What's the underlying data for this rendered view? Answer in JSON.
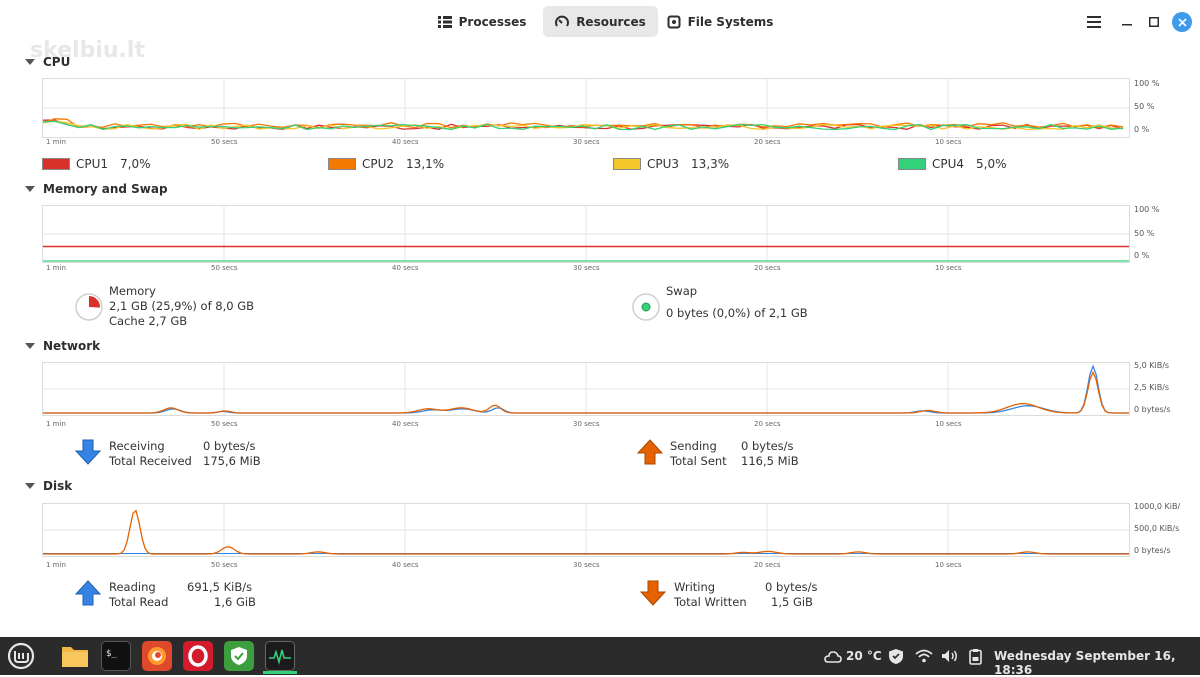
{
  "header": {
    "tabs": [
      {
        "label": "Processes",
        "icon": "list-icon",
        "active": false
      },
      {
        "label": "Resources",
        "icon": "gauge-icon",
        "active": true
      },
      {
        "label": "File Systems",
        "icon": "disk-icon",
        "active": false
      }
    ],
    "watermark": "skelbiu.lt"
  },
  "x_ticks": [
    "1 min",
    "50 secs",
    "40 secs",
    "30 secs",
    "20 secs",
    "10 secs"
  ],
  "cpu": {
    "title": "CPU",
    "y_ticks": [
      "100 %",
      "50 %",
      "0 %"
    ],
    "cores": [
      {
        "name": "CPU1",
        "value": "7,0%",
        "color": "#d9302b"
      },
      {
        "name": "CPU2",
        "value": "13,1%",
        "color": "#f57900"
      },
      {
        "name": "CPU3",
        "value": "13,3%",
        "color": "#f5c629"
      },
      {
        "name": "CPU4",
        "value": "5,0%",
        "color": "#33d17a"
      }
    ]
  },
  "memory": {
    "title": "Memory and Swap",
    "y_ticks": [
      "100 %",
      "50 %",
      "0 %"
    ],
    "memory_label": "Memory",
    "memory_value": "2,1 GB (25,9%) of 8,0 GB",
    "cache_value": "Cache 2,7 GB",
    "swap_label": "Swap",
    "swap_value": "0 bytes (0,0%) of 2,1 GB",
    "memory_color": "#d9302b",
    "swap_color": "#33d17a",
    "memory_fraction": 0.259,
    "swap_fraction": 0.0
  },
  "network": {
    "title": "Network",
    "y_ticks": [
      "5,0 KiB/s",
      "2,5 KiB/s",
      "0 bytes/s"
    ],
    "receiving_label": "Receiving",
    "receiving_value": "0 bytes/s",
    "total_received_label": "Total Received",
    "total_received_value": "175,6 MiB",
    "sending_label": "Sending",
    "sending_value": "0 bytes/s",
    "total_sent_label": "Total Sent",
    "total_sent_value": "116,5 MiB",
    "receive_color": "#3584e4",
    "send_color": "#e66100"
  },
  "disk": {
    "title": "Disk",
    "y_ticks": [
      "1000,0 KiB/",
      "500,0 KiB/s",
      "0 bytes/s"
    ],
    "reading_label": "Reading",
    "reading_value": "691,5 KiB/s",
    "total_read_label": "Total Read",
    "total_read_value": "1,6 GiB",
    "writing_label": "Writing",
    "writing_value": "0 bytes/s",
    "total_written_label": "Total Written",
    "total_written_value": "1,5 GiB",
    "read_color": "#3584e4",
    "write_color": "#e66100"
  },
  "taskbar": {
    "apps": [
      "menu-icon",
      "files-icon",
      "terminal-icon",
      "firefox-icon",
      "opera-icon",
      "shield-icon",
      "system-monitor-icon"
    ],
    "weather": "20 °C",
    "clock": "Wednesday September 16, 18:36"
  }
}
